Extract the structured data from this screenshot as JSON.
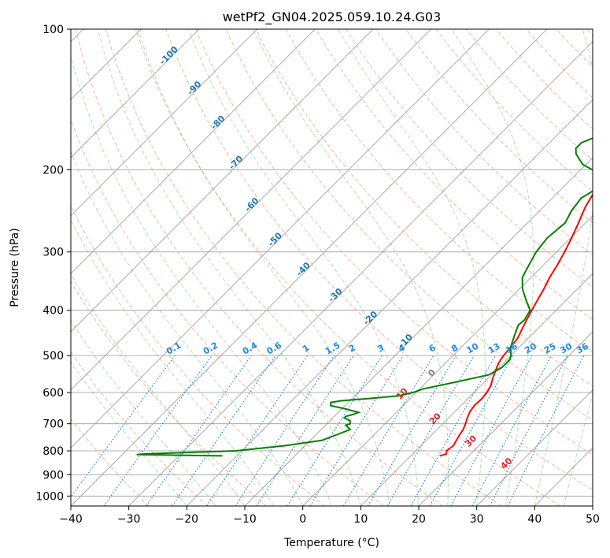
{
  "chart_data": {
    "type": "line",
    "title": "wetPf2_GN04.2025.059.10.24.G03",
    "xlabel": "Temperature (°C)",
    "ylabel": "Pressure (hPa)",
    "xlim": [
      -40,
      50
    ],
    "ylim": [
      1050,
      100
    ],
    "y_scale": "log",
    "x_ticks": [
      -40,
      -30,
      -20,
      -10,
      0,
      10,
      20,
      30,
      40,
      50
    ],
    "y_ticks": [
      100,
      200,
      300,
      400,
      500,
      600,
      700,
      800,
      900,
      1000
    ],
    "grid": true,
    "colors": {
      "temperature": "#ff0000",
      "dewpoint": "#008000",
      "isotherm": "#999999",
      "dry_adiabat": "#f4a582",
      "moist_adiabat": "#2ca02c",
      "mixing_ratio": "#1e88e5",
      "isotherm_label": "#1f77b4",
      "moist_label": "#d62728"
    },
    "series": [
      {
        "key": "temperature",
        "points": [
          [
            15.0,
            820
          ],
          [
            15.8,
            812
          ],
          [
            15.3,
            800
          ],
          [
            15.6,
            780
          ],
          [
            15.2,
            760
          ],
          [
            14.8,
            740
          ],
          [
            14.5,
            720
          ],
          [
            13.9,
            700
          ],
          [
            13.2,
            680
          ],
          [
            12.6,
            660
          ],
          [
            12.3,
            640
          ],
          [
            12.4,
            620
          ],
          [
            12.2,
            600
          ],
          [
            11.7,
            580
          ],
          [
            10.8,
            560
          ],
          [
            10.0,
            540
          ],
          [
            9.2,
            520
          ],
          [
            8.7,
            500
          ],
          [
            8.5,
            480
          ],
          [
            8.2,
            460
          ],
          [
            7.4,
            440
          ],
          [
            6.6,
            420
          ],
          [
            5.8,
            400
          ],
          [
            5.0,
            380
          ],
          [
            4.2,
            360
          ],
          [
            3.2,
            340
          ],
          [
            2.4,
            320
          ],
          [
            1.4,
            300
          ],
          [
            0.2,
            280
          ],
          [
            -1.2,
            260
          ],
          [
            -2.8,
            240
          ],
          [
            -4.0,
            220
          ],
          [
            -4.2,
            210
          ],
          [
            -3.6,
            205
          ],
          [
            -2.5,
            200
          ],
          [
            -1.0,
            195
          ],
          [
            0.8,
            190
          ],
          [
            3.0,
            185
          ],
          [
            5.5,
            180
          ],
          [
            6.9,
            175
          ],
          [
            7.7,
            170
          ],
          [
            8.4,
            165
          ],
          [
            9.2,
            160
          ],
          [
            10.7,
            155
          ],
          [
            12.2,
            150
          ],
          [
            13.4,
            145
          ],
          [
            14.3,
            140
          ],
          [
            14.8,
            135
          ],
          [
            15.2,
            130
          ],
          [
            15.6,
            125
          ],
          [
            16.0,
            120
          ],
          [
            16.5,
            115
          ],
          [
            16.9,
            110
          ],
          [
            17.6,
            105
          ],
          [
            18.2,
            100
          ]
        ]
      },
      {
        "key": "dewpoint",
        "points": [
          [
            -22.5,
            820
          ],
          [
            -37.5,
            815
          ],
          [
            -36.0,
            812
          ],
          [
            -21.0,
            800
          ],
          [
            -13.5,
            780
          ],
          [
            -8.0,
            760
          ],
          [
            -6.5,
            740
          ],
          [
            -5.0,
            720
          ],
          [
            -6.5,
            705
          ],
          [
            -6.0,
            700
          ],
          [
            -6.5,
            690
          ],
          [
            -8.0,
            680
          ],
          [
            -8.0,
            675
          ],
          [
            -7.3,
            670
          ],
          [
            -6.5,
            662
          ],
          [
            -9.5,
            650
          ],
          [
            -12.5,
            640
          ],
          [
            -13.0,
            630
          ],
          [
            -11.5,
            625
          ],
          [
            -7.0,
            618
          ],
          [
            -2.5,
            610
          ],
          [
            -0.5,
            600
          ],
          [
            0.5,
            590
          ],
          [
            5.0,
            570
          ],
          [
            9.5,
            550
          ],
          [
            10.5,
            530
          ],
          [
            10.5,
            510
          ],
          [
            10.0,
            500
          ],
          [
            8.5,
            480
          ],
          [
            7.0,
            450
          ],
          [
            6.0,
            430
          ],
          [
            6.2,
            420
          ],
          [
            5.5,
            400
          ],
          [
            3.0,
            380
          ],
          [
            0.5,
            360
          ],
          [
            -1.5,
            340
          ],
          [
            -2.5,
            320
          ],
          [
            -3.5,
            300
          ],
          [
            -4.0,
            280
          ],
          [
            -3.5,
            260
          ],
          [
            -4.5,
            245
          ],
          [
            -5.0,
            230
          ],
          [
            -4.0,
            220
          ],
          [
            -4.0,
            210
          ],
          [
            -6.0,
            205
          ],
          [
            -8.0,
            200
          ],
          [
            -10.5,
            195
          ],
          [
            -12.0,
            190
          ],
          [
            -13.5,
            185
          ],
          [
            -14.5,
            180
          ],
          [
            -14.5,
            175
          ],
          [
            -13.0,
            170
          ],
          [
            -11.5,
            165
          ],
          [
            -11.0,
            160
          ],
          [
            -11.0,
            155
          ],
          [
            -11.5,
            150
          ],
          [
            -12.0,
            145
          ],
          [
            -12.2,
            140
          ],
          [
            -11.5,
            135
          ],
          [
            -10.5,
            130
          ],
          [
            -9.5,
            125
          ],
          [
            -8.0,
            120
          ],
          [
            -6.5,
            115
          ],
          [
            -5.5,
            110
          ],
          [
            -4.5,
            105
          ],
          [
            -2.5,
            100
          ]
        ]
      }
    ],
    "isotherm_labels": [
      -100,
      -90,
      -80,
      -70,
      -60,
      -50,
      -40,
      -30,
      -20,
      -10,
      0
    ],
    "moist_adiabat_labels": [
      10,
      20,
      30,
      40
    ],
    "mixing_ratio_labels": [
      "0.1",
      "0.2",
      "0.4",
      "0.6",
      "1",
      "1.5",
      "2",
      "3",
      "4",
      "6",
      "8",
      "10",
      "13",
      "16",
      "20",
      "25",
      "30",
      "36"
    ]
  }
}
